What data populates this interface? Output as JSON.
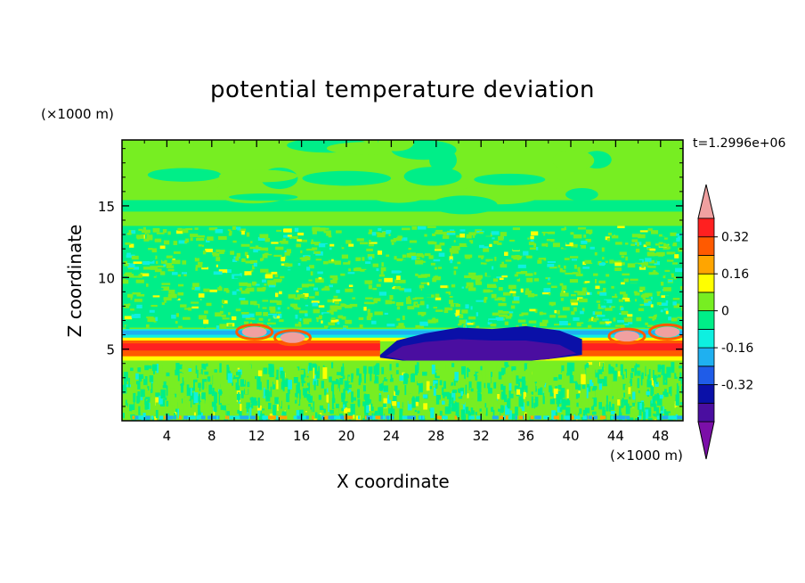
{
  "chart_data": {
    "type": "heatmap",
    "title": "potential temperature deviation",
    "xlabel": "X coordinate",
    "ylabel": "Z coordinate",
    "x_unit": "(×1000 m)",
    "y_unit": "(×1000 m)",
    "time_label": "t=1.2996e+06",
    "xlim": [
      0,
      50
    ],
    "ylim": [
      0,
      19.6
    ],
    "x_ticks": [
      4,
      8,
      12,
      16,
      20,
      24,
      28,
      32,
      36,
      40,
      44,
      48
    ],
    "y_ticks": [
      5,
      10,
      15
    ],
    "colorbar": {
      "levels": [
        -0.48,
        -0.4,
        -0.32,
        -0.24,
        -0.16,
        -0.08,
        0,
        0.08,
        0.16,
        0.24,
        0.32,
        0.4
      ],
      "colors": [
        "#7b0fa8",
        "#4a0ea0",
        "#0a10a8",
        "#1f5ce8",
        "#1fb0f0",
        "#0ef0e0",
        "#00ee88",
        "#77ee22",
        "#ffff00",
        "#ffa500",
        "#ff5a00",
        "#ff2020",
        "#f0a0a0"
      ],
      "tick_labels": [
        "0.32",
        "0.16",
        "0",
        "-0.16",
        "-0.32"
      ],
      "tick_values": [
        0.32,
        0.16,
        0,
        -0.16,
        -0.32
      ]
    },
    "regions": [
      {
        "name": "upper-layer",
        "z_range": [
          13,
          19.6
        ],
        "value": 0.02
      },
      {
        "name": "mid-turbulent-layer",
        "z_range": [
          7,
          13
        ],
        "value": 0.0
      },
      {
        "name": "warm-layer-west",
        "x_range": [
          0,
          23
        ],
        "z_range": [
          4.4,
          5.6
        ],
        "value": 0.28
      },
      {
        "name": "warm-layer-east",
        "x_range": [
          40,
          50
        ],
        "z_range": [
          4.4,
          5.6
        ],
        "value": 0.28
      },
      {
        "name": "cold-pool",
        "x_range": [
          23,
          41
        ],
        "z_range": [
          3.8,
          6.2
        ],
        "value": -0.45
      },
      {
        "name": "warm-bubbles",
        "value": 0.45
      },
      {
        "name": "lower-turbulent-layer",
        "z_range": [
          0,
          4
        ],
        "value": 0.0
      }
    ]
  }
}
